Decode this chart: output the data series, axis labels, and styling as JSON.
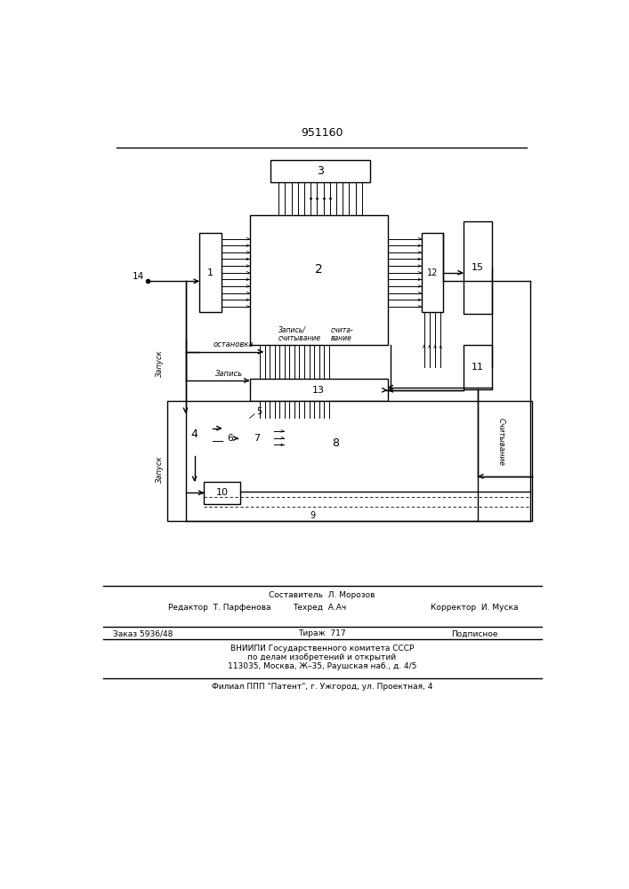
{
  "patent_number": "951160",
  "bg_color": "#ffffff",
  "line_color": "#000000",
  "page_width": 7.07,
  "page_height": 10.0,
  "footer_texts": {
    "editor": "Редактор  Т. Парфенова",
    "composer": "Составитель  Л. Морозов",
    "techred": "Техред  А.Ач",
    "corrector": "Корректор  И. Муска",
    "order": "Заказ 5936/48",
    "print_run": "Тираж  717",
    "subscribed": "Подписное",
    "vniip1": "ВНИИПИ Государственного комитета СССР",
    "vniip2": "по делам изобретений и открытий",
    "vniip3": "113035, Москва, Ж–35, Раушская наб., д. 4/5",
    "filial": "Филиал ППП \"Патент\", г. Ужгород, ул. Проектная, 4"
  }
}
